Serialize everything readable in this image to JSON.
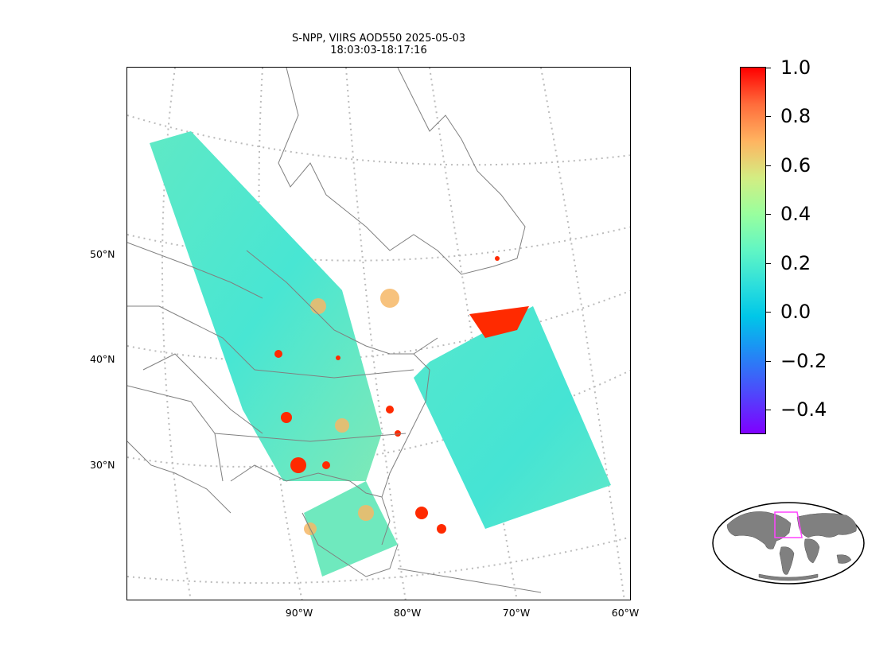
{
  "title": {
    "line1": "S-NPP, VIIRS AOD550 2025-05-03",
    "line2": "18:03:03-18:17:16"
  },
  "axes": {
    "lat_labels": [
      "50°N",
      "40°N",
      "30°N"
    ],
    "lon_labels": [
      "90°W",
      "80°W",
      "70°W",
      "60°W"
    ]
  },
  "colorbar": {
    "colormap": "rainbow",
    "range": [
      -0.5,
      1.0
    ],
    "tick_labels": [
      "1.0",
      "0.8",
      "0.6",
      "0.4",
      "0.2",
      "0.0",
      "−0.2",
      "−0.4"
    ],
    "colors": {
      "low": "#7f00ff",
      "mid": "#40eedd",
      "high": "#ff0000"
    }
  },
  "map": {
    "gridlines": true,
    "gridline_style": "dotted",
    "gridline_color": "#bbbbbb",
    "coastline_color": "#808080",
    "swath_base_color": "#4ee8cf",
    "high_aod_color": "#ff0000"
  },
  "inset": {
    "projection": "robinson",
    "land_color": "#808080",
    "region_box_color": "#ff44ff"
  }
}
